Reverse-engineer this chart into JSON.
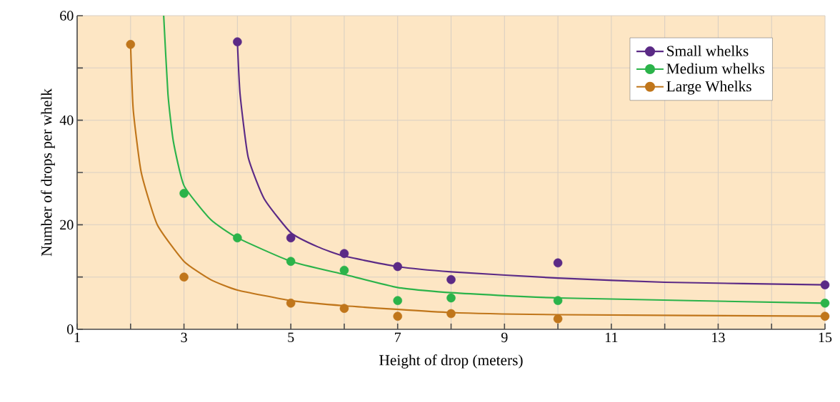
{
  "chart_data": {
    "type": "scatter",
    "xlabel": "Height of drop (meters)",
    "ylabel": "Number of drops per whelk",
    "xlim": [
      1,
      15
    ],
    "xticks": [
      1,
      3,
      5,
      7,
      9,
      11,
      13,
      15
    ],
    "ylim": [
      0,
      60
    ],
    "yticks": [
      0,
      20,
      40,
      60
    ],
    "grid": true,
    "legend": "top right",
    "marker": "circle",
    "series": [
      {
        "name": "Small whelks",
        "color": "#5b2a86",
        "x": [
          4,
          5,
          6,
          7,
          8,
          10,
          15
        ],
        "values": [
          55,
          17.5,
          14.5,
          12,
          9.5,
          12.7,
          8.5
        ]
      },
      {
        "name": "Medium whelks",
        "color": "#2bb34a",
        "x": [
          3,
          4,
          5,
          6,
          7,
          8,
          10,
          15
        ],
        "values": [
          26,
          17.5,
          13,
          11.3,
          5.5,
          6,
          5.5,
          5
        ]
      },
      {
        "name": "Large Whelks",
        "color": "#c0761b",
        "x": [
          2,
          3,
          5,
          6,
          7,
          8,
          10,
          15
        ],
        "values": [
          54.5,
          10,
          5,
          4,
          2.5,
          3,
          2,
          2.5
        ]
      },
      {
        "type": "line",
        "color": "#5b2a86",
        "marker": "none",
        "x": [
          4,
          4.05,
          4.2,
          4.5,
          5,
          5.5,
          6,
          7,
          8,
          10,
          12,
          15
        ],
        "values": [
          55,
          45,
          33,
          25,
          18.5,
          15.8,
          14,
          12,
          11,
          9.8,
          9,
          8.5
        ]
      },
      {
        "type": "line",
        "color": "#2bb34a",
        "marker": "none",
        "x": [
          2.62,
          2.7,
          2.8,
          3,
          3.5,
          4,
          5,
          6,
          7,
          8,
          10,
          15
        ],
        "values": [
          60,
          45,
          36,
          27.5,
          21,
          17.5,
          13,
          10.5,
          8,
          7,
          6,
          5
        ]
      },
      {
        "type": "line",
        "color": "#c0761b",
        "marker": "none",
        "x": [
          2,
          2.05,
          2.2,
          2.5,
          3,
          3.5,
          4,
          5,
          6,
          8,
          10,
          15
        ],
        "values": [
          54.5,
          42,
          30,
          20,
          13,
          9.5,
          7.5,
          5.5,
          4.5,
          3.2,
          2.8,
          2.5
        ]
      }
    ]
  }
}
